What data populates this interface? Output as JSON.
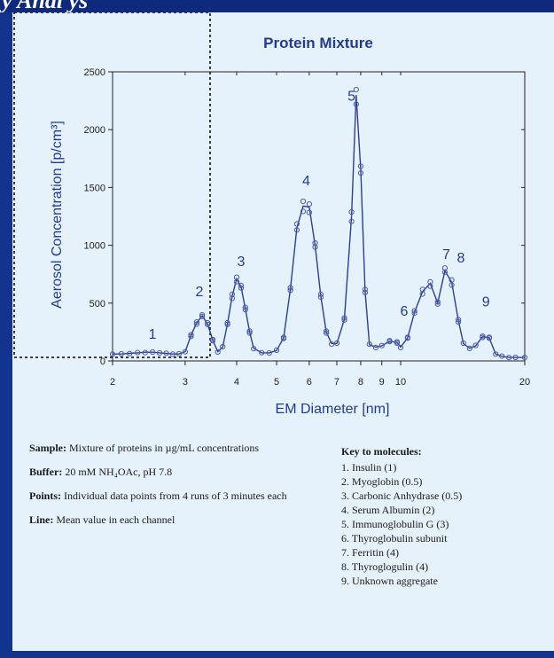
{
  "header_fragment": "y Anal ys",
  "chart_data": {
    "type": "line",
    "title": "Protein Mixture",
    "xlabel": "EM Diameter [nm]",
    "ylabel": "Aerosol Concentration [p/cm³]",
    "x_scale": "log",
    "xlim": [
      2,
      20
    ],
    "ylim": [
      0,
      2500
    ],
    "x_ticks": [
      2,
      3,
      4,
      5,
      6,
      7,
      8,
      9,
      10,
      20
    ],
    "x_tick_labels": [
      "2",
      "3",
      "4",
      "5",
      "6",
      "7",
      "8",
      "9",
      "10",
      "20"
    ],
    "y_ticks": [
      0,
      500,
      1000,
      1500,
      2000,
      2500
    ],
    "y_tick_labels": [
      "0",
      "500",
      "1000",
      "1500",
      "2000",
      "2500"
    ],
    "line": {
      "name": "Mean value in each channel",
      "x": [
        2.0,
        2.1,
        2.2,
        2.3,
        2.4,
        2.5,
        2.6,
        2.7,
        2.8,
        2.9,
        3.0,
        3.1,
        3.2,
        3.3,
        3.4,
        3.5,
        3.6,
        3.7,
        3.8,
        3.9,
        4.0,
        4.1,
        4.2,
        4.3,
        4.4,
        4.6,
        4.8,
        5.0,
        5.2,
        5.4,
        5.6,
        5.8,
        6.0,
        6.2,
        6.4,
        6.6,
        6.8,
        7.0,
        7.3,
        7.6,
        7.8,
        8.0,
        8.2,
        8.4,
        8.7,
        9.0,
        9.4,
        9.8,
        10.0,
        10.4,
        10.8,
        11.3,
        11.8,
        12.3,
        12.8,
        13.3,
        13.8,
        14.2,
        14.7,
        15.2,
        15.8,
        16.4,
        17.0,
        17.6,
        18.3,
        19.0,
        20.0
      ],
      "y": [
        60,
        60,
        65,
        70,
        75,
        75,
        70,
        65,
        60,
        60,
        80,
        220,
        330,
        390,
        320,
        180,
        80,
        120,
        320,
        560,
        710,
        640,
        450,
        250,
        110,
        70,
        70,
        90,
        200,
        620,
        1150,
        1340,
        1330,
        1000,
        560,
        250,
        150,
        150,
        360,
        1250,
        2300,
        1650,
        600,
        140,
        120,
        130,
        170,
        160,
        120,
        200,
        420,
        600,
        670,
        500,
        780,
        680,
        350,
        150,
        110,
        130,
        210,
        200,
        60,
        40,
        30,
        30,
        30
      ]
    },
    "points_label": "Individual data points from 4 runs of 3 minutes each",
    "peak_labels": [
      {
        "text": "1",
        "x": 2.5,
        "y": 190
      },
      {
        "text": "2",
        "x": 3.25,
        "y": 560
      },
      {
        "text": "3",
        "x": 4.1,
        "y": 820
      },
      {
        "text": "4",
        "x": 5.9,
        "y": 1520
      },
      {
        "text": "5",
        "x": 7.6,
        "y": 2250
      },
      {
        "text": "6",
        "x": 10.2,
        "y": 390
      },
      {
        "text": "7",
        "x": 12.9,
        "y": 880
      },
      {
        "text": "8",
        "x": 14.0,
        "y": 850
      },
      {
        "text": "9",
        "x": 16.1,
        "y": 470
      }
    ]
  },
  "notes": {
    "sample_label": "Sample:",
    "sample_text": "Mixture of proteins in µg/mL concentrations",
    "buffer_label": "Buffer:",
    "buffer_text": "20 mM NH₄OAc, pH 7.8",
    "points_label": "Points:",
    "points_text": "Individual data points from 4 runs of 3 minutes each",
    "line_label": "Line:",
    "line_text": "Mean value in each channel"
  },
  "key": {
    "title": "Key to molecules:",
    "items": [
      "1. Insulin (1)",
      "2. Myoglobin (0.5)",
      "3. Carbonic Anhydrase (0.5)",
      "4. Serum Albumin (2)",
      "5. Immunoglobulin G (3)",
      "6. Thyroglobulin subunit",
      "7. Ferritin (4)",
      "8. Thyroglogulin (4)",
      "9. Unknown aggregate"
    ]
  },
  "colors": {
    "line": "#2d3f91",
    "marker": "#4a5aa8",
    "title": "#233b8f",
    "panel": "#e6f2fb",
    "border": "#12348f"
  }
}
